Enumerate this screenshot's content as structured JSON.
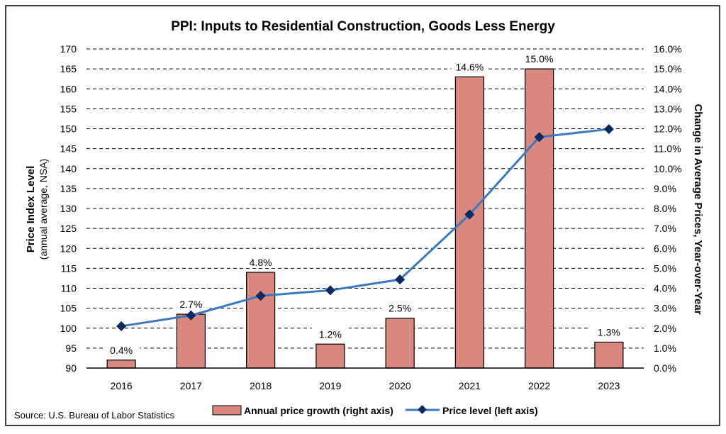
{
  "chart_data": {
    "type": "bar+line",
    "title": "PPI: Inputs to Residential Construction, Goods Less Energy",
    "categories": [
      "2016",
      "2017",
      "2018",
      "2019",
      "2020",
      "2021",
      "2022",
      "2023"
    ],
    "series": [
      {
        "name": "Annual price growth (right axis)",
        "type": "bar",
        "axis": "right",
        "values": [
          0.4,
          2.7,
          4.8,
          1.2,
          2.5,
          14.6,
          15.0,
          1.3
        ],
        "labels": [
          "0.4%",
          "2.7%",
          "4.8%",
          "1.2%",
          "2.5%",
          "14.6%",
          "15.0%",
          "1.3%"
        ],
        "color": "#d98880"
      },
      {
        "name": "Price level (left axis)",
        "type": "line",
        "axis": "left",
        "values": [
          100.5,
          103.2,
          108.1,
          109.5,
          112.2,
          128.5,
          147.9,
          149.9
        ],
        "color": "#3a78c0",
        "marker_color": "#0d2a5e"
      }
    ],
    "ylabel_left": "Price Index Level",
    "ylabel_left_sub": "(annual average, NSA)",
    "ylabel_right": "Change in Average Prices, Year-over-Year",
    "ylim_left": [
      90,
      170
    ],
    "ylim_right": [
      0,
      16
    ],
    "left_ticks": [
      "90",
      "95",
      "100",
      "105",
      "110",
      "115",
      "120",
      "125",
      "130",
      "135",
      "140",
      "145",
      "150",
      "155",
      "160",
      "165",
      "170"
    ],
    "right_ticks": [
      "0.0%",
      "1.0%",
      "2.0%",
      "3.0%",
      "4.0%",
      "5.0%",
      "6.0%",
      "7.0%",
      "8.0%",
      "9.0%",
      "10.0%",
      "11.0%",
      "12.0%",
      "13.0%",
      "14.0%",
      "15.0%",
      "16.0%"
    ],
    "grid": "dashed horizontal",
    "legend_position": "bottom",
    "source": "Source: U.S. Bureau of Labor Statistics"
  }
}
